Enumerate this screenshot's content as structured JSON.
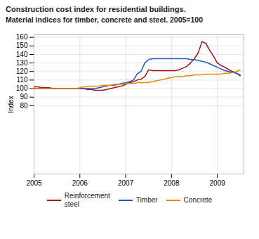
{
  "chart_data": {
    "type": "line",
    "title": "Construction cost index for residential buildings.",
    "subtitle": "Material indices for timber, concrete and steel. 2005=100",
    "y_label": "Index",
    "ylim": [
      0,
      163
    ],
    "yticks": [
      80,
      90,
      100,
      110,
      120,
      130,
      140,
      150,
      160
    ],
    "xlim": [
      2005.0,
      2009.58
    ],
    "xticks": [
      2005,
      2006,
      2007,
      2008,
      2009
    ],
    "grid": true,
    "legend": "bottom",
    "x": [
      2005.0,
      2005.083,
      2005.167,
      2005.25,
      2005.333,
      2005.417,
      2005.5,
      2005.583,
      2005.667,
      2005.75,
      2005.833,
      2005.917,
      2006.0,
      2006.083,
      2006.167,
      2006.25,
      2006.333,
      2006.417,
      2006.5,
      2006.583,
      2006.667,
      2006.75,
      2006.833,
      2006.917,
      2007.0,
      2007.083,
      2007.167,
      2007.25,
      2007.333,
      2007.417,
      2007.5,
      2007.583,
      2007.667,
      2007.75,
      2007.833,
      2007.917,
      2008.0,
      2008.083,
      2008.167,
      2008.25,
      2008.333,
      2008.417,
      2008.5,
      2008.583,
      2008.667,
      2008.75,
      2008.833,
      2008.917,
      2009.0,
      2009.083,
      2009.167,
      2009.25,
      2009.333,
      2009.417,
      2009.5
    ],
    "series": [
      {
        "name": "Reinforcement\nsteel",
        "color": "#aa1111",
        "values": [
          102,
          102,
          101,
          101,
          101,
          100,
          100,
          100,
          100,
          100,
          100,
          100,
          100,
          100,
          99,
          99,
          98,
          98,
          98,
          99,
          100,
          101,
          102,
          103,
          105,
          107,
          108,
          110,
          111,
          114,
          122,
          121,
          121,
          121,
          121,
          121,
          121,
          121,
          122,
          124,
          126,
          130,
          135,
          142,
          155,
          153,
          145,
          138,
          130,
          127,
          125,
          122,
          120,
          118,
          115
        ]
      },
      {
        "name": "Timber",
        "color": "#2255cc",
        "values": [
          100,
          100,
          100,
          100,
          100,
          100,
          100,
          100,
          100,
          100,
          100,
          100,
          100,
          100,
          100,
          100,
          100,
          101,
          102,
          103,
          104,
          104,
          105,
          106,
          107,
          108,
          110,
          117,
          120,
          130,
          134,
          135,
          135,
          135,
          135,
          135,
          135,
          135,
          135,
          135,
          135,
          134,
          134,
          133,
          132,
          131,
          129,
          127,
          125,
          123,
          121,
          120,
          119,
          118,
          116
        ]
      },
      {
        "name": "Concrete",
        "color": "#ee8800",
        "values": [
          100,
          100,
          100,
          100,
          100,
          100,
          100,
          100,
          100,
          100,
          100,
          100,
          101,
          102,
          102,
          103,
          103,
          103,
          104,
          104,
          104,
          105,
          105,
          105,
          106,
          106,
          106,
          107,
          107,
          107,
          107,
          108,
          109,
          110,
          111,
          112,
          113,
          114,
          114,
          114,
          115,
          115,
          116,
          116,
          116,
          117,
          117,
          117,
          117,
          117,
          118,
          118,
          119,
          120,
          122
        ]
      }
    ]
  }
}
